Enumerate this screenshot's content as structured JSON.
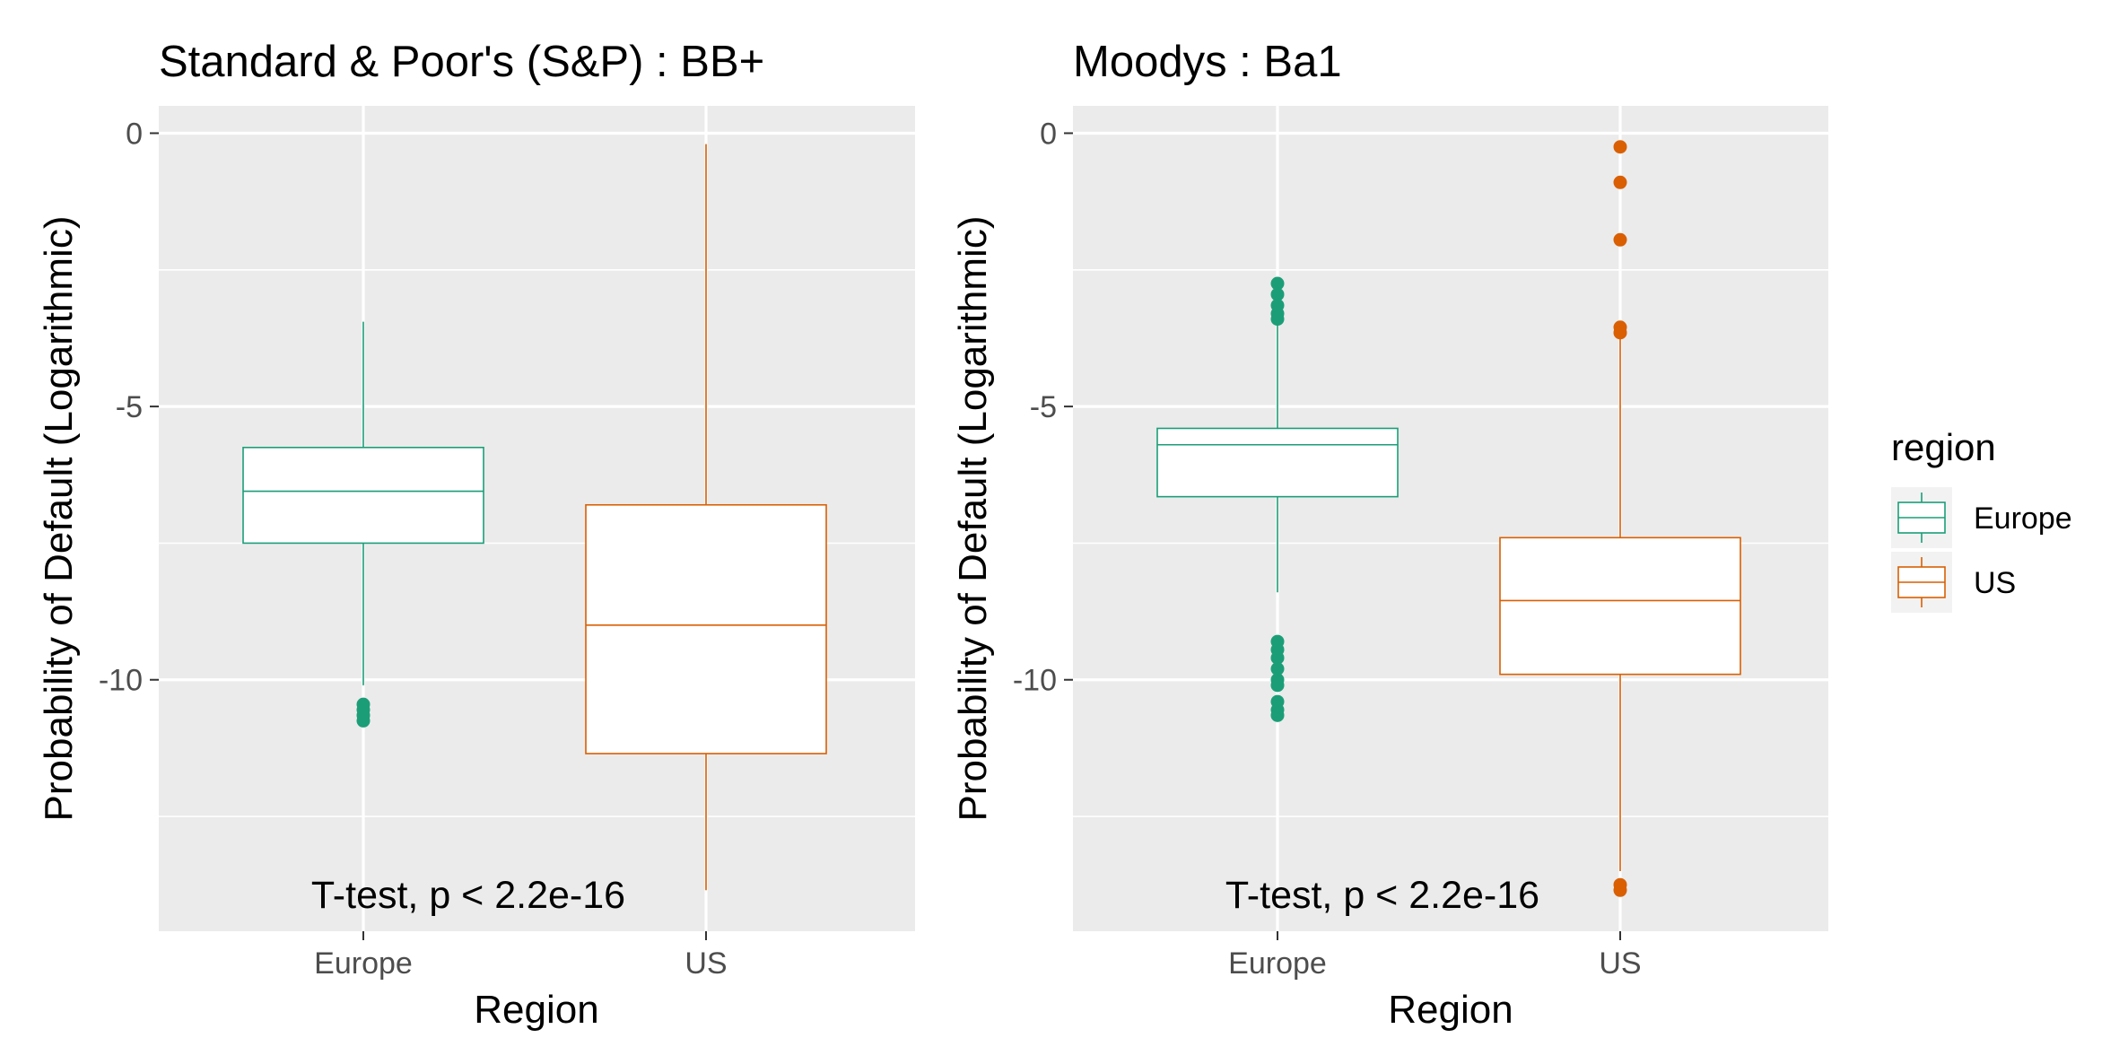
{
  "chart_data": [
    {
      "type": "box",
      "title": "Standard & Poor's (S&P) : BB+",
      "xlabel": "Region",
      "ylabel": "Probability of Default (Logarithmic)",
      "ylim": [
        -14.6,
        0.5
      ],
      "y_ticks": [
        0,
        -5,
        -10
      ],
      "y_tick_labels": [
        "0",
        "-5",
        "-10"
      ],
      "y_minor_ticks": [
        -2.5,
        -7.5,
        -12.5
      ],
      "categories": [
        "Europe",
        "US"
      ],
      "grid": true,
      "annotation": "T-test, p < 2.2e-16",
      "boxes": [
        {
          "category": "Europe",
          "color": "#1b9e77",
          "whisker_low": -10.1,
          "q1": -7.5,
          "median": -6.55,
          "q3": -5.75,
          "whisker_high": -3.45,
          "outliers": [
            -10.45,
            -10.55,
            -10.65,
            -10.75
          ]
        },
        {
          "category": "US",
          "color": "#d95f02",
          "whisker_low": -13.85,
          "q1": -11.35,
          "median": -9.0,
          "q3": -6.8,
          "whisker_high": -0.2,
          "outliers": []
        }
      ]
    },
    {
      "type": "box",
      "title": "Moodys : Ba1",
      "xlabel": "Region",
      "ylabel": "Probability of Default (Logarithmic)",
      "ylim": [
        -14.6,
        0.5
      ],
      "y_ticks": [
        0,
        -5,
        -10
      ],
      "y_tick_labels": [
        "0",
        "-5",
        "-10"
      ],
      "y_minor_ticks": [
        -2.5,
        -7.5,
        -12.5
      ],
      "categories": [
        "Europe",
        "US"
      ],
      "grid": true,
      "annotation": "T-test, p < 2.2e-16",
      "boxes": [
        {
          "category": "Europe",
          "color": "#1b9e77",
          "whisker_low": -8.4,
          "q1": -6.65,
          "median": -5.7,
          "q3": -5.4,
          "whisker_high": -3.5,
          "outliers": [
            -2.75,
            -2.95,
            -3.15,
            -3.3,
            -3.4,
            -9.3,
            -9.45,
            -9.6,
            -9.8,
            -10.0,
            -10.1,
            -10.4,
            -10.55,
            -10.65
          ]
        },
        {
          "category": "US",
          "color": "#d95f02",
          "whisker_low": -13.5,
          "q1": -9.9,
          "median": -8.55,
          "q3": -7.4,
          "whisker_high": -3.75,
          "outliers": [
            -0.25,
            -0.9,
            -1.95,
            -3.55,
            -3.65,
            -13.75,
            -13.85
          ]
        }
      ]
    }
  ],
  "legend": {
    "title": "region",
    "placement": "right",
    "items": [
      {
        "label": "Europe",
        "color": "#1b9e77"
      },
      {
        "label": "US",
        "color": "#d95f02"
      }
    ]
  }
}
